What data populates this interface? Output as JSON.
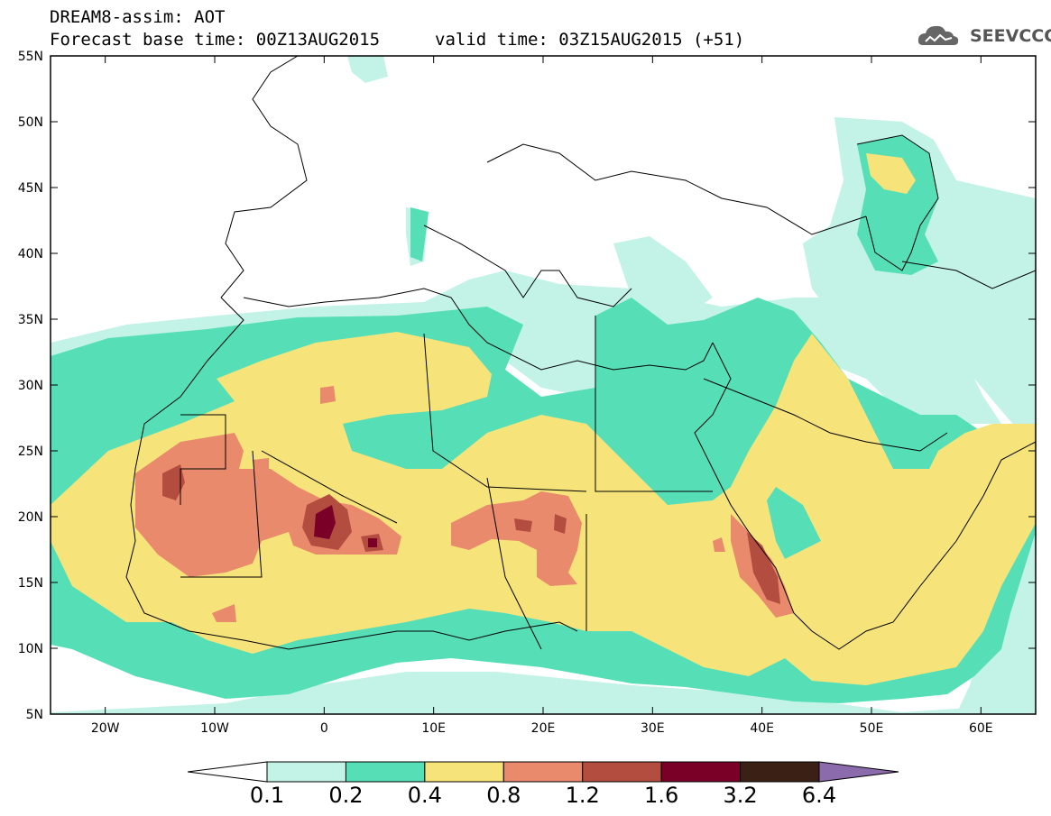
{
  "header": {
    "line1": "DREAM8-assim: AOT",
    "line2": "Forecast base time: 00Z13AUG2015",
    "valid": "valid time: 03Z15AUG2015 (+51)"
  },
  "logo": {
    "text": "SEEVCCC",
    "icon": "cloud-logo-icon"
  },
  "map": {
    "lat_labels": [
      "55N",
      "50N",
      "45N",
      "40N",
      "35N",
      "30N",
      "25N",
      "20N",
      "15N",
      "10N",
      "5N"
    ],
    "lon_labels": [
      "20W",
      "10W",
      "0",
      "10E",
      "20E",
      "30E",
      "40E",
      "50E",
      "60E"
    ],
    "extent": {
      "lon": [
        -25,
        65
      ],
      "lat": [
        5,
        55
      ]
    }
  },
  "colorbar": {
    "labels": [
      "0.1",
      "0.2",
      "0.4",
      "0.8",
      "1.2",
      "1.6",
      "3.2",
      "6.4"
    ],
    "colors": [
      "#ffffff",
      "#c3f2e7",
      "#56dfb7",
      "#f6e47a",
      "#e98a6c",
      "#b34d40",
      "#7a0028",
      "#3b2115",
      "#8b6bab"
    ]
  }
}
